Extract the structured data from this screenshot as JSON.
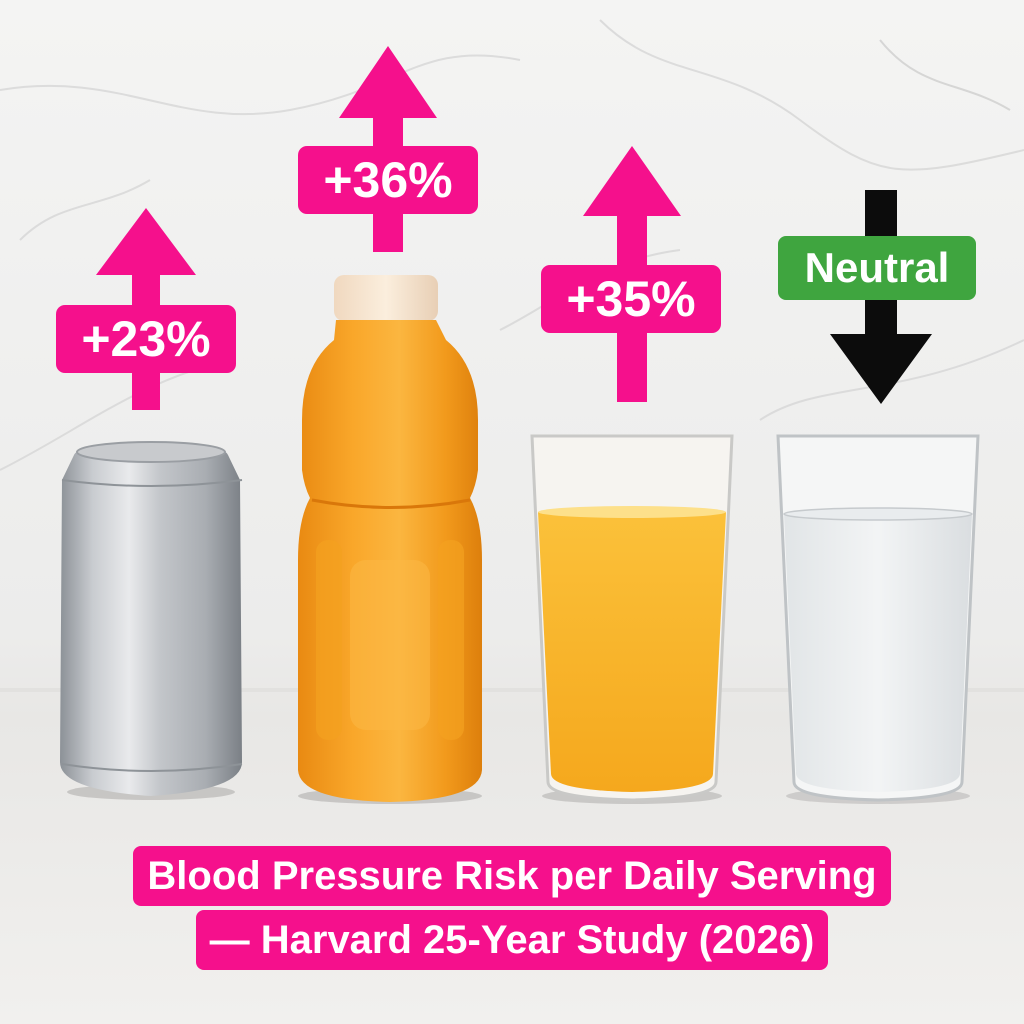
{
  "badges": [
    {
      "label": "+23%",
      "direction": "up",
      "color": "#f5108c"
    },
    {
      "label": "+36%",
      "direction": "up",
      "color": "#f5108c"
    },
    {
      "label": "+35%",
      "direction": "up",
      "color": "#f5108c"
    },
    {
      "label": "Neutral",
      "direction": "down",
      "color": "#3fa53f",
      "arrow_color": "#000000"
    }
  ],
  "caption": {
    "line1": "Blood Pressure Risk per Daily Serving",
    "line2": "— Harvard 25-Year Study (2026)",
    "color": "#f5108c"
  },
  "drinks": [
    {
      "icon": "soda-can-icon"
    },
    {
      "icon": "sports-drink-bottle-icon"
    },
    {
      "icon": "orange-juice-glass-icon"
    },
    {
      "icon": "water-glass-icon"
    }
  ]
}
